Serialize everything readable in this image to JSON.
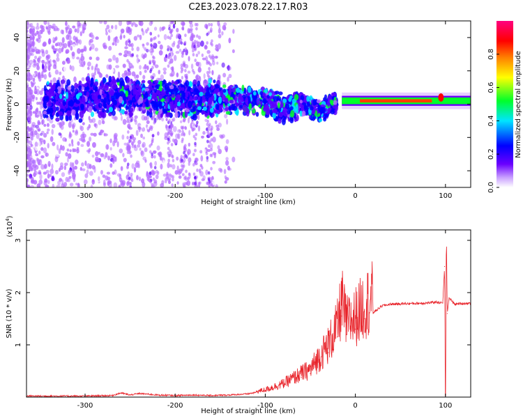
{
  "title": "C2E3.2023.078.22.17.R03",
  "chart_data": [
    {
      "type": "heatmap",
      "xlabel": "Height of straight line (km)",
      "ylabel": "Frequency (Hz)",
      "xlim": [
        -365,
        128
      ],
      "ylim": [
        -50,
        50
      ],
      "x_ticks": [
        -300,
        -200,
        -100,
        0,
        100
      ],
      "y_ticks": [
        -40,
        -20,
        0,
        20,
        40
      ],
      "colorbar": {
        "label": "Normalized spectral amplitude",
        "range": [
          0,
          1
        ],
        "ticks": [
          0.0,
          0.2,
          0.4,
          0.6,
          0.8
        ],
        "colormap": [
          "#ffffff",
          "#b36bff",
          "#5a00ff",
          "#0000ff",
          "#00e5ff",
          "#00ff2a",
          "#ffff00",
          "#ff8000",
          "#ff0000",
          "#ff007f"
        ]
      },
      "band_center_hz": [
        {
          "x": -300,
          "y": 5
        },
        {
          "x": -250,
          "y": 4
        },
        {
          "x": -200,
          "y": 3
        },
        {
          "x": -150,
          "y": 3
        },
        {
          "x": -100,
          "y": 2
        },
        {
          "x": -80,
          "y": -3
        },
        {
          "x": -60,
          "y": 0
        },
        {
          "x": -40,
          "y": -4
        },
        {
          "x": -20,
          "y": 2
        },
        {
          "x": 0,
          "y": 2
        },
        {
          "x": 50,
          "y": 2
        },
        {
          "x": 95,
          "y": 3
        },
        {
          "x": 128,
          "y": 2
        }
      ]
    },
    {
      "type": "line",
      "xlabel": "Height of straight line (km)",
      "ylabel": "SNR (10 * v/v)",
      "y_multiplier": "(x10",
      "y_multiplier_exp": "4",
      "xlim": [
        -365,
        128
      ],
      "ylim": [
        0,
        3.2
      ],
      "x_ticks": [
        -300,
        -200,
        -100,
        0,
        100
      ],
      "y_ticks": [
        1,
        2,
        3
      ],
      "color": "#e8232a",
      "series": [
        {
          "points": [
            [
              -365,
              0.02
            ],
            [
              -300,
              0.02
            ],
            [
              -270,
              0.03
            ],
            [
              -260,
              0.08
            ],
            [
              -250,
              0.04
            ],
            [
              -240,
              0.07
            ],
            [
              -220,
              0.04
            ],
            [
              -200,
              0.03
            ],
            [
              -180,
              0.04
            ],
            [
              -160,
              0.03
            ],
            [
              -140,
              0.04
            ],
            [
              -120,
              0.06
            ],
            [
              -100,
              0.12
            ],
            [
              -80,
              0.22
            ],
            [
              -60,
              0.38
            ],
            [
              -50,
              0.45
            ],
            [
              -40,
              0.65
            ],
            [
              -30,
              0.85
            ],
            [
              -20,
              1.15
            ],
            [
              -15,
              1.55
            ],
            [
              -10,
              1.2
            ],
            [
              0,
              1.3
            ],
            [
              10,
              1.5
            ],
            [
              20,
              1.62
            ],
            [
              30,
              1.75
            ],
            [
              40,
              1.78
            ],
            [
              60,
              1.79
            ],
            [
              80,
              1.8
            ],
            [
              90,
              1.82
            ],
            [
              97,
              1.8
            ],
            [
              99,
              2.5
            ],
            [
              100,
              0.03
            ],
            [
              101,
              3.2
            ],
            [
              102,
              1.6
            ],
            [
              104,
              1.9
            ],
            [
              110,
              1.78
            ],
            [
              128,
              1.8
            ]
          ]
        }
      ]
    }
  ]
}
